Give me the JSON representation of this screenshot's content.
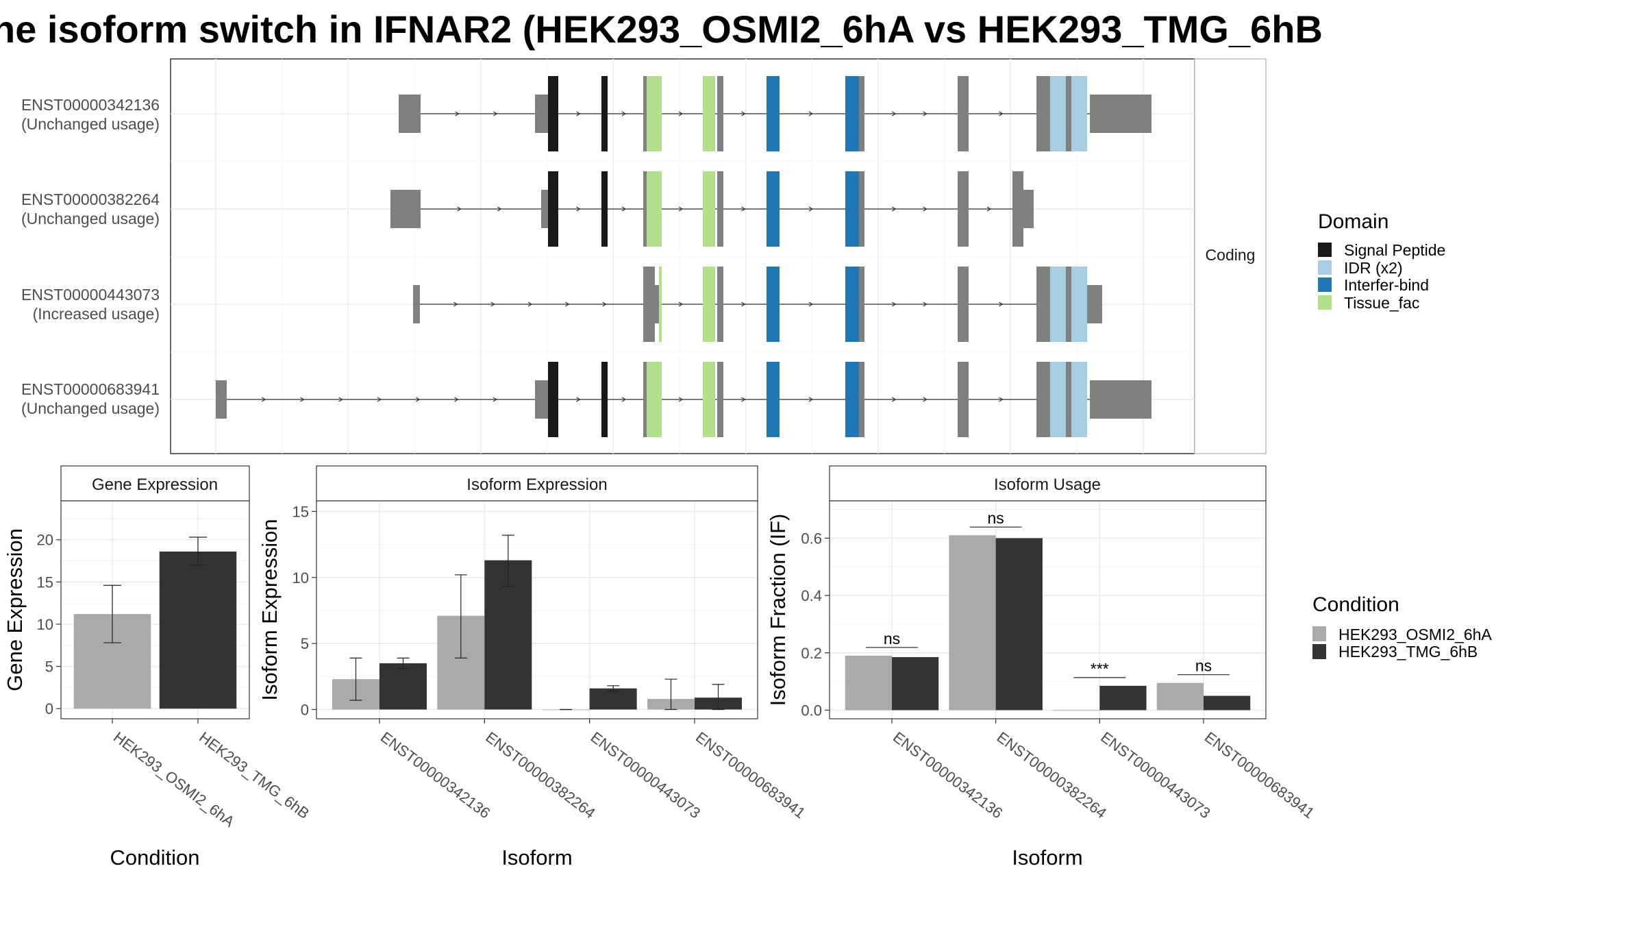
{
  "title": "he isoform switch in IFNAR2 (HEK293_OSMI2_6hA vs HEK293_TMG_6hB",
  "colors": {
    "exon": "#808080",
    "signal_peptide": "#1a1a1a",
    "idr": "#a6cee3",
    "interfer_bind": "#1f78b4",
    "tissue_fac": "#b2df8a",
    "condition_a": "#aaaaaa",
    "condition_b": "#333333"
  },
  "top_panel": {
    "strip_label": "Coding",
    "transcripts": [
      {
        "id": "ENST00000342136",
        "usage": "(Unchanged usage)"
      },
      {
        "id": "ENST00000382264",
        "usage": "(Unchanged usage)"
      },
      {
        "id": "ENST00000443073",
        "usage": "(Increased usage)"
      },
      {
        "id": "ENST00000683941",
        "usage": "(Unchanged usage)"
      }
    ]
  },
  "domain_legend": {
    "title": "Domain",
    "items": [
      {
        "label": "Signal Peptide",
        "color": "#1a1a1a"
      },
      {
        "label": "IDR (x2)",
        "color": "#a6cee3"
      },
      {
        "label": "Interfer-bind",
        "color": "#1f78b4"
      },
      {
        "label": "Tissue_fac",
        "color": "#b2df8a"
      }
    ]
  },
  "condition_legend": {
    "title": "Condition",
    "items": [
      {
        "label": "HEK293_OSMI2_6hA",
        "color": "#aaaaaa"
      },
      {
        "label": "HEK293_TMG_6hB",
        "color": "#333333"
      }
    ]
  },
  "chart_data": [
    {
      "type": "bar",
      "title": "Gene Expression",
      "xlabel": "Condition",
      "ylabel": "Gene Expression",
      "categories": [
        "HEK293_OSMI2_6hA",
        "HEK293_TMG_6hB"
      ],
      "values": [
        11.2,
        18.6
      ],
      "error_low": [
        7.8,
        17.0
      ],
      "error_high": [
        14.6,
        20.3
      ],
      "ylim": [
        -1.2,
        24.6
      ],
      "yticks": [
        0,
        5,
        10,
        15,
        20
      ],
      "grid": true
    },
    {
      "type": "bar",
      "title": "Isoform Expression",
      "xlabel": "Isoform",
      "ylabel": "Isoform Expression",
      "categories": [
        "ENST00000342136",
        "ENST00000382264",
        "ENST00000443073",
        "ENST00000683941"
      ],
      "series": [
        {
          "name": "HEK293_OSMI2_6hA",
          "values": [
            2.3,
            7.1,
            0.0,
            0.8
          ],
          "error_low": [
            0.7,
            3.9,
            0.0,
            0.0
          ],
          "error_high": [
            3.9,
            10.2,
            0.0,
            2.3
          ]
        },
        {
          "name": "HEK293_TMG_6hB",
          "values": [
            3.5,
            11.3,
            1.6,
            0.9
          ],
          "error_low": [
            3.1,
            9.3,
            1.4,
            0.0
          ],
          "error_high": [
            3.9,
            13.2,
            1.8,
            1.9
          ]
        }
      ],
      "ylim": [
        -0.7,
        15.8
      ],
      "yticks": [
        0,
        5,
        10,
        15
      ],
      "grid": true
    },
    {
      "type": "bar",
      "title": "Isoform Usage",
      "xlabel": "Isoform",
      "ylabel": "Isoform Fraction (IF)",
      "categories": [
        "ENST00000342136",
        "ENST00000382264",
        "ENST00000443073",
        "ENST00000683941"
      ],
      "series": [
        {
          "name": "HEK293_OSMI2_6hA",
          "values": [
            0.19,
            0.61,
            0.0,
            0.095
          ]
        },
        {
          "name": "HEK293_TMG_6hB",
          "values": [
            0.185,
            0.6,
            0.085,
            0.05
          ]
        }
      ],
      "significance": [
        "ns",
        "ns",
        "***",
        "ns"
      ],
      "ylim": [
        -0.03,
        0.73
      ],
      "yticks": [
        0.0,
        0.2,
        0.4,
        0.6
      ],
      "ytick_labels": [
        "0.0",
        "0.2",
        "0.4",
        "0.6"
      ],
      "grid": true
    }
  ]
}
